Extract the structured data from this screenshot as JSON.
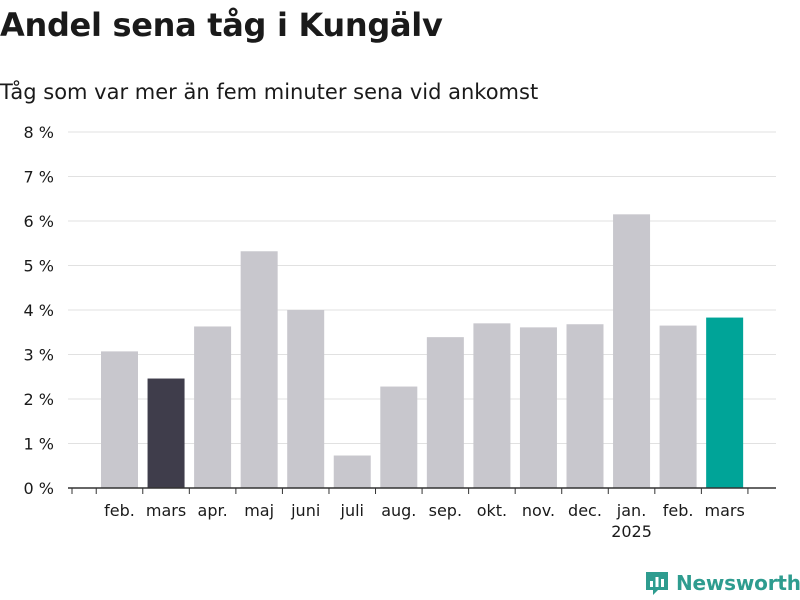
{
  "title": "Andel sena tåg i Kungälv",
  "subtitle": "Tåg som var mer än fem minuter sena vid ankomst",
  "brand": {
    "name": "Newsworthy",
    "icon": "newsworthy-logo-icon",
    "color": "#2e9c8f"
  },
  "chart_data": {
    "type": "bar",
    "title": "Andel sena tåg i Kungälv",
    "subtitle": "Tåg som var mer än fem minuter sena vid ankomst",
    "xlabel": "",
    "ylabel": "",
    "ylim": [
      0,
      8
    ],
    "yticks": [
      0,
      1,
      2,
      3,
      4,
      5,
      6,
      7,
      8
    ],
    "ytick_labels": [
      "0 %",
      "1 %",
      "2 %",
      "3 %",
      "4 %",
      "5 %",
      "6 %",
      "7 %",
      "8 %"
    ],
    "categories": [
      "feb.",
      "mars",
      "apr.",
      "maj",
      "juni",
      "juli",
      "aug.",
      "sep.",
      "okt.",
      "nov.",
      "dec.",
      "jan.",
      "feb.",
      "mars"
    ],
    "category_sublabels": [
      "",
      "",
      "",
      "",
      "",
      "",
      "",
      "",
      "",
      "",
      "",
      "2025",
      "",
      ""
    ],
    "values": [
      3.07,
      2.46,
      3.63,
      5.32,
      4.0,
      0.73,
      2.28,
      3.39,
      3.7,
      3.61,
      3.68,
      6.15,
      3.65,
      3.83
    ],
    "colors": [
      "#c8c7cd",
      "#3f3d4b",
      "#c8c7cd",
      "#c8c7cd",
      "#c8c7cd",
      "#c8c7cd",
      "#c8c7cd",
      "#c8c7cd",
      "#c8c7cd",
      "#c8c7cd",
      "#c8c7cd",
      "#c8c7cd",
      "#c8c7cd",
      "#00a498"
    ],
    "grid": true
  }
}
